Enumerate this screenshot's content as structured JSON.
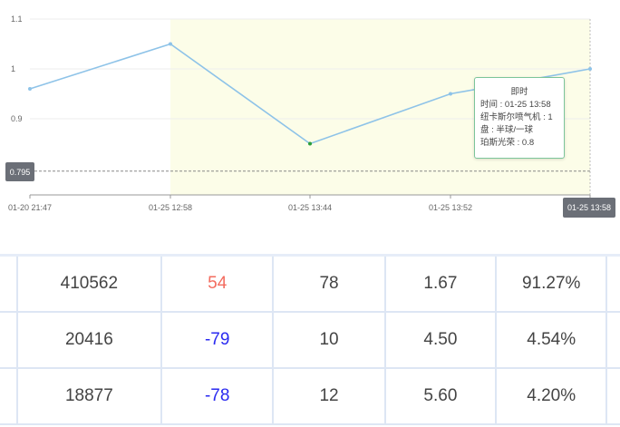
{
  "chart_data": {
    "type": "line",
    "x": [
      "01-20 21:47",
      "01-25 12:58",
      "01-25 13:44",
      "01-25 13:52",
      "01-25 13:58"
    ],
    "series": [
      {
        "values": [
          0.96,
          1.05,
          0.85,
          0.95,
          1.0
        ]
      }
    ],
    "yticks": [
      0.9,
      1,
      1.1
    ],
    "ytick_labels": [
      "0.9",
      "1",
      "1.1"
    ],
    "ylim": [
      0.747,
      1.1
    ],
    "grid": true,
    "reference_line": {
      "value": "0.795"
    },
    "x_pointer_label": "01-25 13:58",
    "highlight_range": [
      "01-25 12:58",
      "01-25 13:58"
    ],
    "colors": {
      "line": "#8ec3e8",
      "highlight": "#fcfde8",
      "pointer": "#6b6f77",
      "min_point": "#2a9d3a"
    }
  },
  "tooltip": {
    "title": "即时",
    "lines": [
      "时间 : 01-25 13:58",
      "纽卡斯尔喷气机 : 1",
      "盘 : 半球/一球",
      "珀斯光荣 : 0.8"
    ]
  },
  "table": {
    "rows": [
      [
        "410562",
        "54",
        "78",
        "1.67",
        "91.27%"
      ],
      [
        "20416",
        "-79",
        "10",
        "4.50",
        "4.54%"
      ],
      [
        "18877",
        "-78",
        "12",
        "5.60",
        "4.20%"
      ]
    ]
  }
}
